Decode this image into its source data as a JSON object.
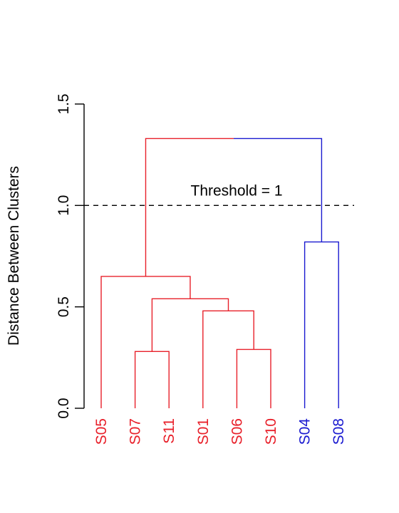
{
  "chart_data": {
    "type": "dendrogram",
    "title": "",
    "xlabel": "",
    "ylabel": "Distance Between Clusters",
    "ylim": [
      0,
      1.5
    ],
    "yticks": [
      "0.0",
      "0.5",
      "1.0",
      "1.5"
    ],
    "ytick_values": [
      0,
      0.5,
      1.0,
      1.5
    ],
    "leaves": [
      {
        "label": "S05",
        "color": "#e8202a"
      },
      {
        "label": "S07",
        "color": "#e8202a"
      },
      {
        "label": "S11",
        "color": "#e8202a"
      },
      {
        "label": "S01",
        "color": "#e8202a"
      },
      {
        "label": "S06",
        "color": "#e8202a"
      },
      {
        "label": "S10",
        "color": "#e8202a"
      },
      {
        "label": "S04",
        "color": "#1a1ad0"
      },
      {
        "label": "S08",
        "color": "#1a1ad0"
      }
    ],
    "merges": [
      {
        "left": "S07",
        "right": "S11",
        "height": 0.28,
        "color": "#e8202a"
      },
      {
        "left": "S06",
        "right": "S10",
        "height": 0.29,
        "color": "#e8202a"
      },
      {
        "left": "S01",
        "right": "S06+S10",
        "height": 0.48,
        "color": "#e8202a"
      },
      {
        "left": "S07+S11",
        "right": "S01+S06+S10",
        "height": 0.54,
        "color": "#e8202a"
      },
      {
        "left": "S05",
        "right": "S07+S11+S01+S06+S10",
        "height": 0.65,
        "color": "#e8202a"
      },
      {
        "left": "S04",
        "right": "S08",
        "height": 0.82,
        "color": "#1a1ad0"
      },
      {
        "left": "red-cluster",
        "right": "blue-cluster",
        "height": 1.33,
        "color": "mixed"
      }
    ],
    "threshold": {
      "value": 1.0,
      "label": "Threshold = 1"
    },
    "colors": {
      "cluster_1": "#e8202a",
      "cluster_2": "#1a1ad0",
      "axis": "#000000"
    }
  }
}
